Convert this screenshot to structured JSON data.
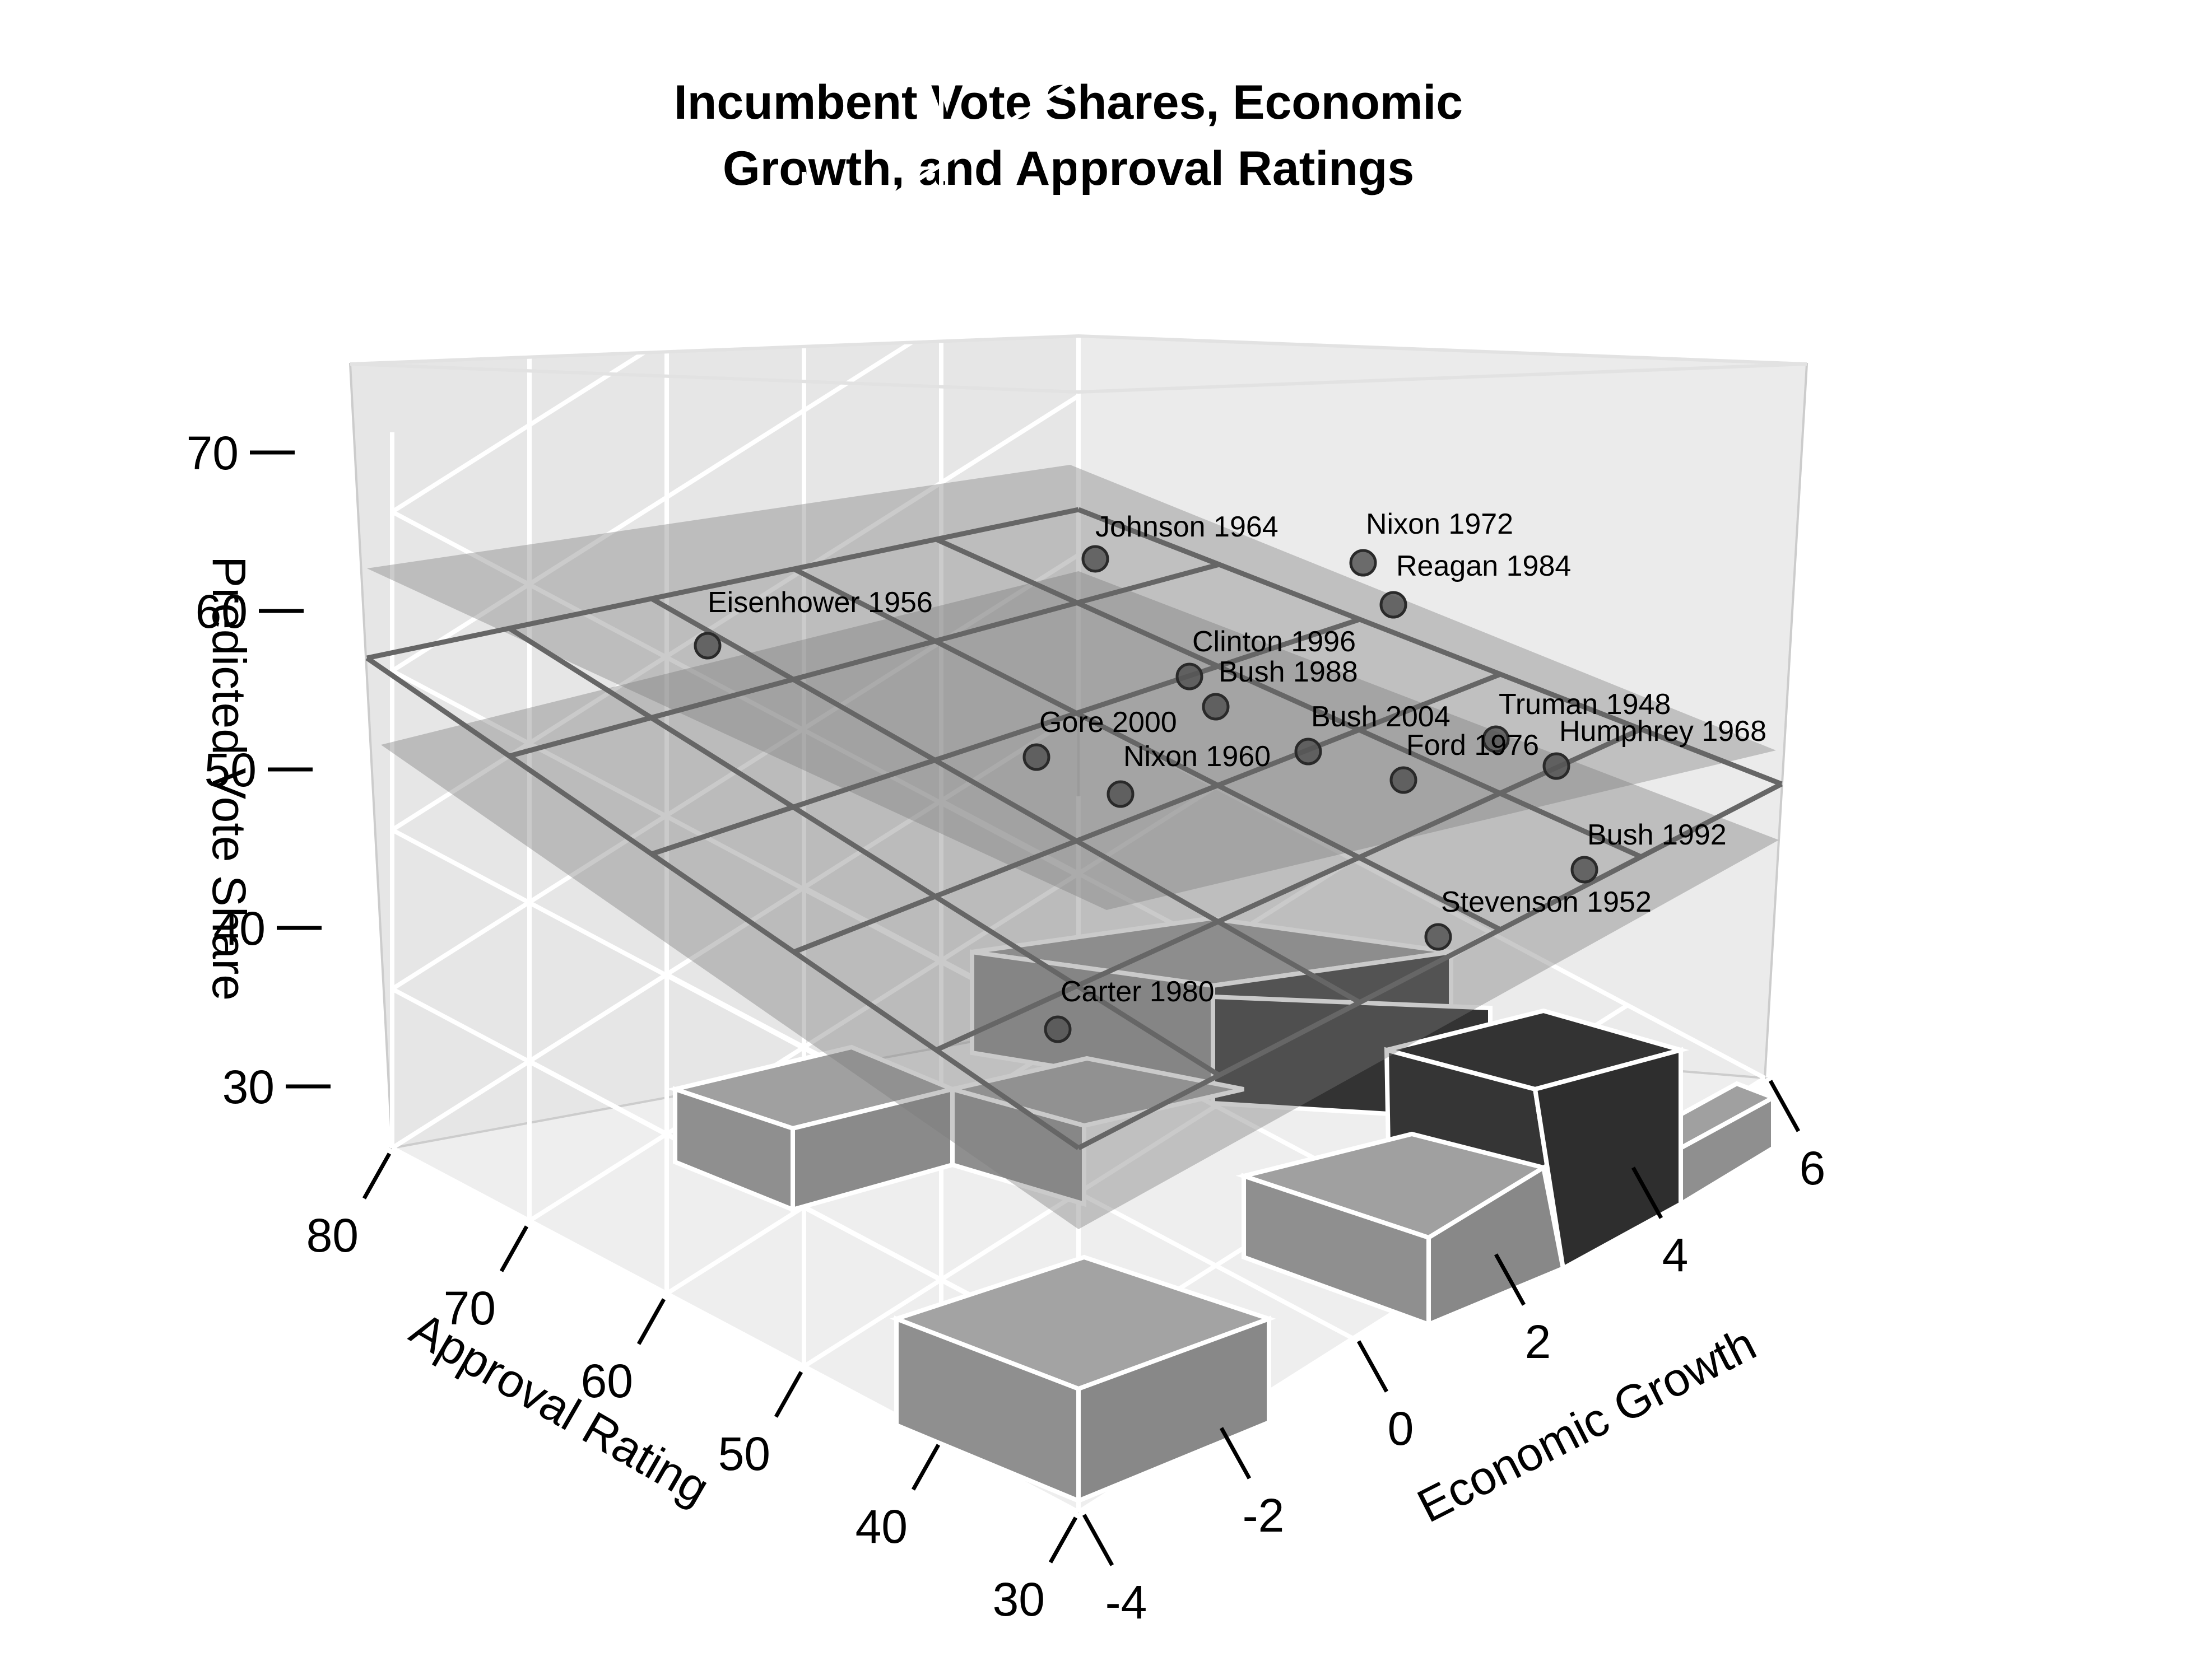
{
  "chart_data": {
    "type": "scatter3d",
    "title_lines": [
      "Incumbent Vote Shares, Economic",
      "Growth, and Approval Ratings"
    ],
    "xlabel": "Economic Growth",
    "ylabel": "Approval Rating",
    "zlabel": "Predicted Vote Share",
    "xlim": [
      -4,
      6
    ],
    "ylim": [
      30,
      80
    ],
    "zlim": [
      30,
      70
    ],
    "x_ticks": [
      "-4",
      "-2",
      "0",
      "2",
      "4",
      "6"
    ],
    "y_ticks": [
      "30",
      "40",
      "50",
      "60",
      "70",
      "80"
    ],
    "z_ticks": [
      "30",
      "40",
      "50",
      "60",
      "70"
    ],
    "grid": true,
    "points": [
      {
        "label": "Eisenhower 1956",
        "growth": -2.2,
        "approval": 74,
        "vote": 57.8
      },
      {
        "label": "Johnson 1964",
        "growth": 4.4,
        "approval": 74,
        "vote": 61.3
      },
      {
        "label": "Nixon 1972",
        "growth": 5.8,
        "approval": 58,
        "vote": 61.8
      },
      {
        "label": "Reagan 1984",
        "growth": 5.5,
        "approval": 56,
        "vote": 59.2
      },
      {
        "label": "Clinton 1996",
        "growth": 2.1,
        "approval": 57,
        "vote": 54.7
      },
      {
        "label": "Bush 1988",
        "growth": 2.2,
        "approval": 50,
        "vote": 53.9
      },
      {
        "label": "Gore 2000",
        "growth": -0.5,
        "approval": 60,
        "vote": 50.3
      },
      {
        "label": "Nixon 1960",
        "growth": 0.2,
        "approval": 50,
        "vote": 49.9
      },
      {
        "label": "Bush 2004",
        "growth": 2.5,
        "approval": 46,
        "vote": 51.2
      },
      {
        "label": "Ford 1976",
        "growth": 3.1,
        "approval": 40,
        "vote": 48.9
      },
      {
        "label": "Truman 1948",
        "growth": 3.8,
        "approval": 39,
        "vote": 52.3
      },
      {
        "label": "Humphrey 1968",
        "growth": 5.0,
        "approval": 33,
        "vote": 49.6
      },
      {
        "label": "Bush 1992",
        "growth": 4.6,
        "approval": 31,
        "vote": 46.5
      },
      {
        "label": "Stevenson 1952",
        "growth": 0.8,
        "approval": 32,
        "vote": 44.6
      },
      {
        "label": "Carter 1980",
        "growth": -4.0,
        "approval": 37,
        "vote": 44.7
      }
    ]
  }
}
